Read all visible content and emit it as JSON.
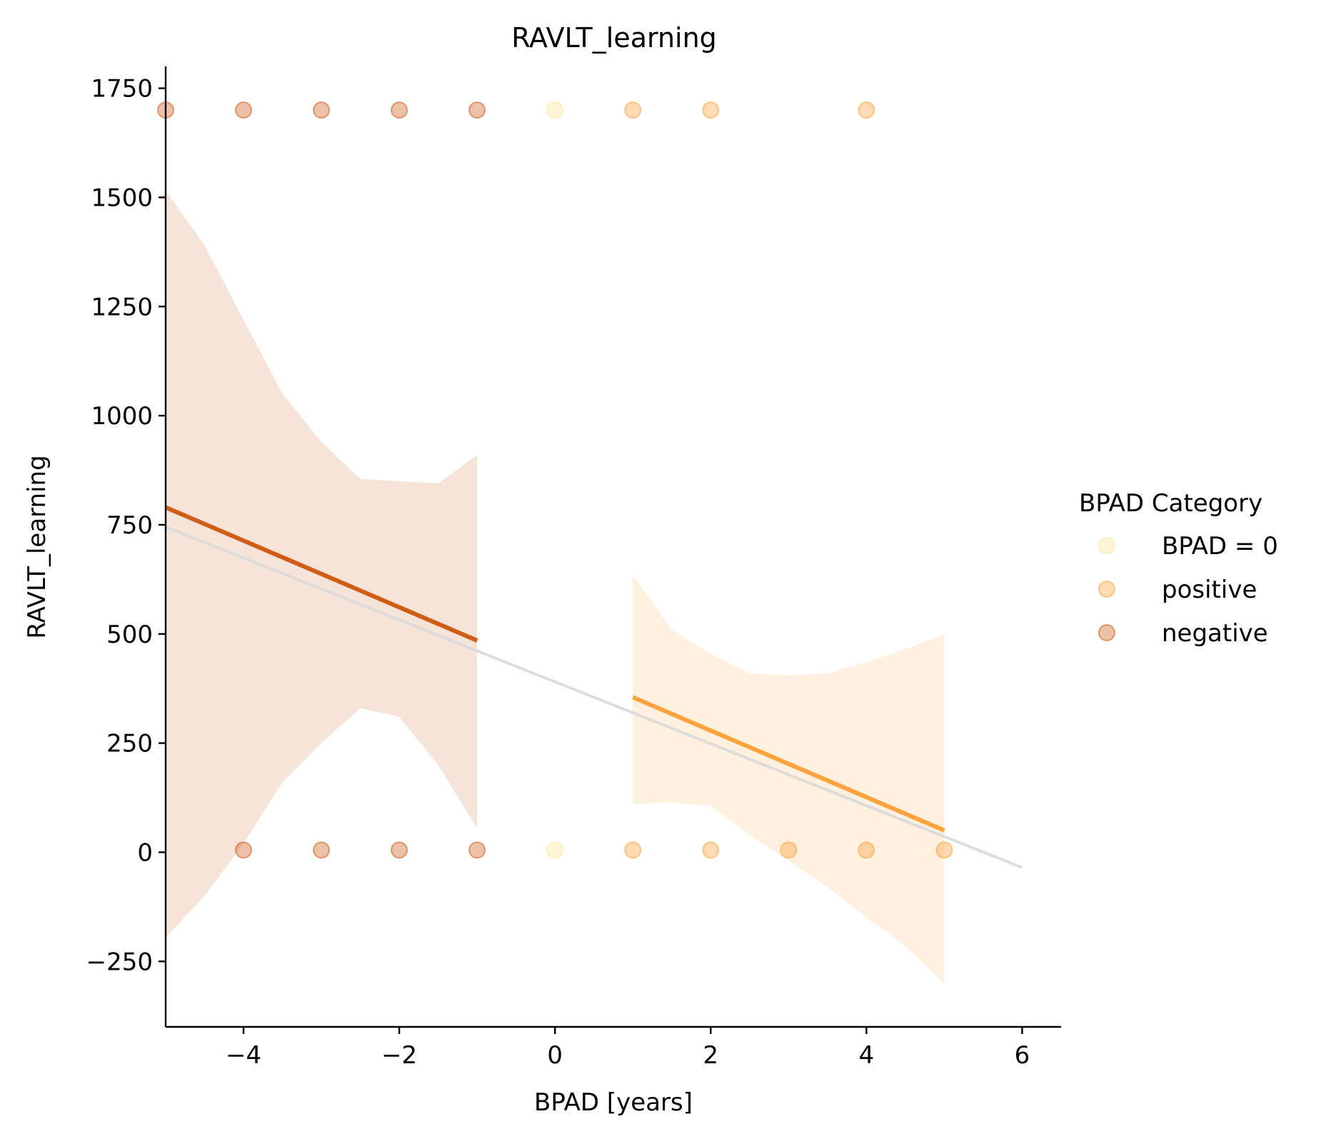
{
  "chart_data": {
    "type": "scatter",
    "title": "RAVLT_learning",
    "xlabel": "BPAD [years]",
    "ylabel": "RAVLT_learning",
    "xlim": [
      -5,
      6.5
    ],
    "ylim": [
      -400,
      1800
    ],
    "x_ticks": [
      -4,
      -2,
      0,
      2,
      4,
      6
    ],
    "x_tick_labels": [
      "−4",
      "−2",
      "0",
      "2",
      "4",
      "6"
    ],
    "y_ticks": [
      -250,
      0,
      250,
      500,
      750,
      1000,
      1250,
      1500,
      1750
    ],
    "y_tick_labels": [
      "−250",
      "0",
      "250",
      "500",
      "750",
      "1000",
      "1250",
      "1500",
      "1750"
    ],
    "grid": false,
    "legend": {
      "title": "BPAD Category",
      "placement": "right",
      "entries": [
        {
          "label": "BPAD = 0",
          "color": "#fee391"
        },
        {
          "label": "positive",
          "color": "#fe9929"
        },
        {
          "label": "negative",
          "color": "#cc4c02"
        }
      ]
    },
    "series": [
      {
        "name": "BPAD = 0",
        "color": "#fee391",
        "points": [
          {
            "x": 0,
            "y": 1700
          },
          {
            "x": 0,
            "y": 5
          }
        ]
      },
      {
        "name": "positive",
        "color": "#fe9929",
        "points": [
          {
            "x": 1,
            "y": 1700
          },
          {
            "x": 2,
            "y": 1700
          },
          {
            "x": 4,
            "y": 1700
          },
          {
            "x": 1,
            "y": 5
          },
          {
            "x": 2,
            "y": 5
          },
          {
            "x": 3,
            "y": 5
          },
          {
            "x": 4,
            "y": 5
          },
          {
            "x": 5,
            "y": 5
          }
        ],
        "fit": {
          "x": [
            1,
            5
          ],
          "y": [
            355,
            50
          ]
        },
        "ci": {
          "x": [
            1,
            1.5,
            2,
            2.5,
            3,
            3.5,
            4,
            4.5,
            5
          ],
          "lower": [
            110,
            115,
            105,
            40,
            -20,
            -80,
            -150,
            -215,
            -300
          ],
          "upper": [
            635,
            510,
            455,
            410,
            405,
            410,
            435,
            465,
            500
          ]
        }
      },
      {
        "name": "negative",
        "color": "#cc4c02",
        "points": [
          {
            "x": -5,
            "y": 1700
          },
          {
            "x": -4,
            "y": 1700
          },
          {
            "x": -3,
            "y": 1700
          },
          {
            "x": -2,
            "y": 1700
          },
          {
            "x": -1,
            "y": 1700
          },
          {
            "x": -4,
            "y": 5
          },
          {
            "x": -3,
            "y": 5
          },
          {
            "x": -2,
            "y": 5
          },
          {
            "x": -1,
            "y": 5
          }
        ],
        "fit": {
          "x": [
            -5,
            -1
          ],
          "y": [
            790,
            485
          ]
        },
        "ci": {
          "x": [
            -5,
            -4.5,
            -4,
            -3.5,
            -3,
            -2.5,
            -2,
            -1.5,
            -1
          ],
          "lower": [
            -195,
            -100,
            20,
            160,
            250,
            330,
            310,
            200,
            55
          ],
          "upper": [
            1515,
            1390,
            1220,
            1050,
            940,
            855,
            850,
            845,
            910
          ]
        }
      },
      {
        "name": "",
        "color": "#d9d9d9",
        "points": [],
        "fit": {
          "x": [
            -5,
            6
          ],
          "y": [
            745,
            -35
          ]
        }
      }
    ]
  }
}
